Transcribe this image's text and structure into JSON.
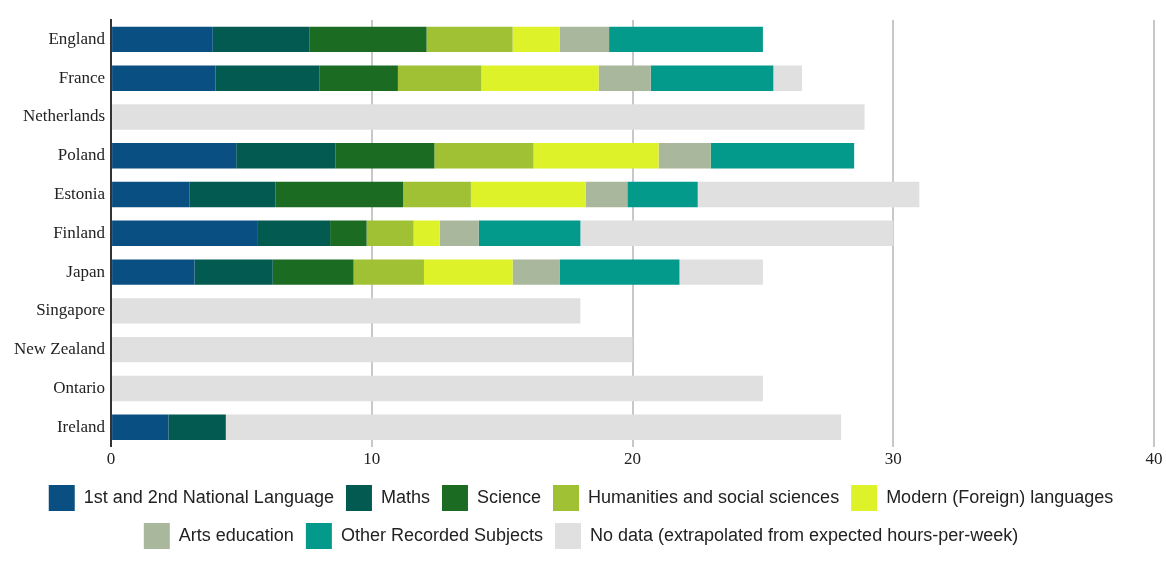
{
  "chart_data": {
    "type": "bar",
    "orientation": "horizontal",
    "stacked": true,
    "categories": [
      "England",
      "France",
      "Netherlands",
      "Poland",
      "Estonia",
      "Finland",
      "Japan",
      "Singapore",
      "New Zealand",
      "Ontario",
      "Ireland"
    ],
    "series": [
      {
        "name": "1st and 2nd National Language",
        "color": "#0a4f82",
        "values": [
          3.9,
          4.0,
          null,
          4.8,
          3.0,
          5.6,
          3.2,
          null,
          null,
          null,
          2.2
        ]
      },
      {
        "name": "Maths",
        "color": "#035a50",
        "values": [
          3.7,
          4.0,
          null,
          3.8,
          3.3,
          2.8,
          3.0,
          null,
          null,
          null,
          2.2
        ]
      },
      {
        "name": "Science",
        "color": "#1b6b23",
        "values": [
          4.5,
          3.0,
          null,
          3.8,
          4.9,
          1.4,
          3.1,
          null,
          null,
          null,
          null
        ]
      },
      {
        "name": "Humanities and social sciences",
        "color": "#a0c133",
        "values": [
          3.3,
          3.2,
          null,
          3.8,
          2.6,
          1.8,
          2.7,
          null,
          null,
          null,
          null
        ]
      },
      {
        "name": "Modern (Foreign) languages",
        "color": "#def22a",
        "values": [
          1.8,
          4.5,
          null,
          4.8,
          4.4,
          1.0,
          3.4,
          null,
          null,
          null,
          null
        ]
      },
      {
        "name": "Arts education",
        "color": "#a9b89c",
        "values": [
          1.9,
          2.0,
          null,
          2.0,
          1.6,
          1.5,
          1.8,
          null,
          null,
          null,
          null
        ]
      },
      {
        "name": "Other Recorded Subjects",
        "color": "#039a8c",
        "values": [
          5.9,
          4.7,
          null,
          5.5,
          2.7,
          3.9,
          4.6,
          null,
          null,
          null,
          null
        ]
      },
      {
        "name": "No data (extrapolated from expected hours-per-week)",
        "color": "#e0e0e0",
        "values": [
          null,
          1.1,
          28.9,
          null,
          8.5,
          12.0,
          3.2,
          18,
          20,
          25,
          23.6
        ]
      }
    ],
    "xlim": [
      0,
      40
    ],
    "xticks": [
      0,
      10,
      20,
      30,
      40
    ],
    "grid": "x",
    "legend": "bottom"
  }
}
